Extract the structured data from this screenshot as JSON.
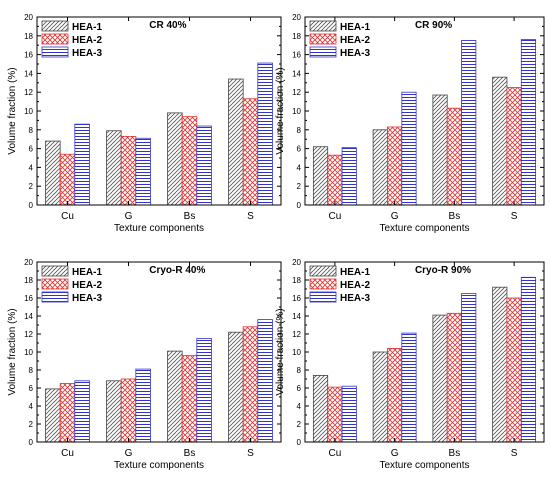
{
  "chart_data": [
    {
      "type": "bar",
      "title": "CR 40%",
      "xlabel": "Texture components",
      "ylabel": "Volume fraction (%)",
      "categories": [
        "Cu",
        "G",
        "Bs",
        "S"
      ],
      "ylim": [
        0,
        20
      ],
      "yticks": [
        "0",
        "2",
        "4",
        "6",
        "8",
        "10",
        "12",
        "14",
        "16",
        "18",
        "20"
      ],
      "legend_position": "top-left",
      "series": [
        {
          "name": "HEA-1",
          "values": [
            6.8,
            7.9,
            9.8,
            13.4
          ]
        },
        {
          "name": "HEA-2",
          "values": [
            5.4,
            7.3,
            9.4,
            11.3
          ]
        },
        {
          "name": "HEA-3",
          "values": [
            8.6,
            7.1,
            8.4,
            15.1
          ]
        }
      ]
    },
    {
      "type": "bar",
      "title": "CR 90%",
      "xlabel": "Texture components",
      "ylabel": "Volume fraction (%)",
      "categories": [
        "Cu",
        "G",
        "Bs",
        "S"
      ],
      "ylim": [
        0,
        20
      ],
      "yticks": [
        "0",
        "2",
        "4",
        "6",
        "8",
        "10",
        "12",
        "14",
        "16",
        "18",
        "20"
      ],
      "legend_position": "top-left",
      "series": [
        {
          "name": "HEA-1",
          "values": [
            6.2,
            8.0,
            11.7,
            13.6
          ]
        },
        {
          "name": "HEA-2",
          "values": [
            5.3,
            8.3,
            10.3,
            12.5
          ]
        },
        {
          "name": "HEA-3",
          "values": [
            6.1,
            12.0,
            17.5,
            17.6
          ]
        }
      ]
    },
    {
      "type": "bar",
      "title": "Cryo-R 40%",
      "xlabel": "Texture components",
      "ylabel": "Volume fraction (%)",
      "categories": [
        "Cu",
        "G",
        "Bs",
        "S"
      ],
      "ylim": [
        0,
        20
      ],
      "yticks": [
        "0",
        "2",
        "4",
        "6",
        "8",
        "10",
        "12",
        "14",
        "16",
        "18",
        "20"
      ],
      "legend_position": "top-left",
      "series": [
        {
          "name": "HEA-1",
          "values": [
            5.9,
            6.8,
            10.1,
            12.2
          ]
        },
        {
          "name": "HEA-2",
          "values": [
            6.5,
            7.0,
            9.6,
            12.8
          ]
        },
        {
          "name": "HEA-3",
          "values": [
            6.8,
            8.1,
            11.5,
            13.6
          ]
        }
      ]
    },
    {
      "type": "bar",
      "title": "Cryo-R 90%",
      "xlabel": "Texture components",
      "ylabel": "Volume fraction (%)",
      "categories": [
        "Cu",
        "G",
        "Bs",
        "S"
      ],
      "ylim": [
        0,
        20
      ],
      "yticks": [
        "0",
        "2",
        "4",
        "6",
        "8",
        "10",
        "12",
        "14",
        "16",
        "18",
        "20"
      ],
      "legend_position": "top-left",
      "series": [
        {
          "name": "HEA-1",
          "values": [
            7.4,
            10.0,
            14.1,
            17.2
          ]
        },
        {
          "name": "HEA-2",
          "values": [
            6.1,
            10.4,
            14.3,
            16.0
          ]
        },
        {
          "name": "HEA-3",
          "values": [
            6.2,
            12.1,
            16.5,
            18.3
          ]
        }
      ]
    }
  ],
  "series_style": {
    "HEA-1": {
      "pattern": "diagonal-hatch",
      "color": "#555555"
    },
    "HEA-2": {
      "pattern": "cross-hatch",
      "color": "#e03030"
    },
    "HEA-3": {
      "pattern": "horizontal-lines",
      "color": "#3333cc"
    }
  }
}
